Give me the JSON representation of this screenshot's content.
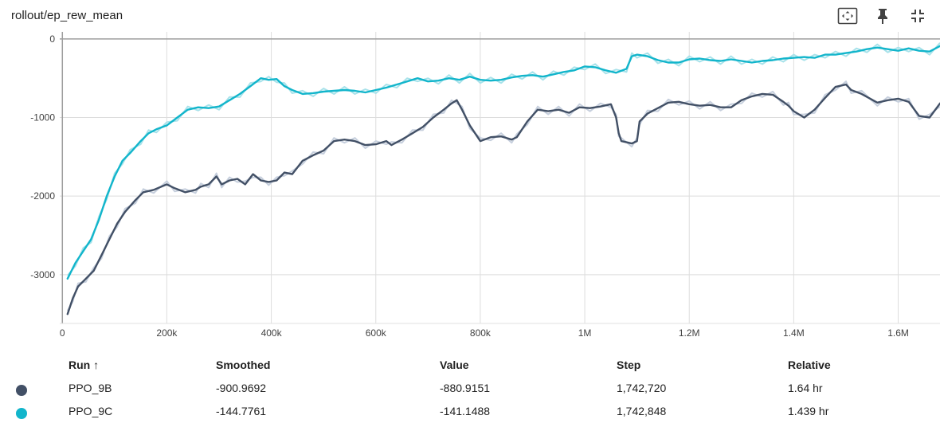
{
  "card": {
    "title": "rollout/ep_rew_mean"
  },
  "toolbar": {
    "icons": [
      "fit-domain-icon",
      "pin-icon",
      "collapse-icon"
    ]
  },
  "chart_data": {
    "type": "line",
    "title": "rollout/ep_rew_mean",
    "xlabel": "",
    "ylabel": "",
    "xlim": [
      -5000,
      1680000
    ],
    "ylim": [
      -3620,
      90
    ],
    "x_ticks": [
      {
        "v": 0,
        "label": "0"
      },
      {
        "v": 200000,
        "label": "200k"
      },
      {
        "v": 400000,
        "label": "400k"
      },
      {
        "v": 600000,
        "label": "600k"
      },
      {
        "v": 800000,
        "label": "800k"
      },
      {
        "v": 1000000,
        "label": "1M"
      },
      {
        "v": 1200000,
        "label": "1.2M"
      },
      {
        "v": 1400000,
        "label": "1.4M"
      },
      {
        "v": 1600000,
        "label": "1.6M"
      }
    ],
    "y_ticks": [
      {
        "v": 0,
        "label": "0"
      },
      {
        "v": -1000,
        "label": "-1000"
      },
      {
        "v": -2000,
        "label": "-2000"
      },
      {
        "v": -3000,
        "label": "-3000"
      }
    ],
    "grid": true,
    "series": [
      {
        "name": "PPO_9B",
        "color": "#425066",
        "raw_color": "#c6cfdd",
        "x": [
          10000,
          20000,
          30000,
          45000,
          60000,
          75000,
          90000,
          105000,
          120000,
          140000,
          155000,
          175000,
          200000,
          215000,
          235000,
          255000,
          265000,
          280000,
          295000,
          305000,
          320000,
          335000,
          350000,
          365000,
          380000,
          395000,
          410000,
          425000,
          440000,
          460000,
          480000,
          500000,
          520000,
          540000,
          560000,
          580000,
          600000,
          620000,
          630000,
          650000,
          670000,
          690000,
          710000,
          730000,
          745000,
          755000,
          765000,
          780000,
          800000,
          820000,
          840000,
          860000,
          870000,
          890000,
          910000,
          930000,
          950000,
          970000,
          990000,
          1010000,
          1030000,
          1050000,
          1060000,
          1065000,
          1070000,
          1090000,
          1100000,
          1105000,
          1120000,
          1140000,
          1160000,
          1180000,
          1200000,
          1220000,
          1240000,
          1260000,
          1280000,
          1300000,
          1320000,
          1340000,
          1360000,
          1380000,
          1390000,
          1400000,
          1420000,
          1440000,
          1460000,
          1480000,
          1500000,
          1510000,
          1530000,
          1560000,
          1580000,
          1600000,
          1620000,
          1640000,
          1660000,
          1680000
        ],
        "values": [
          -3500,
          -3300,
          -3150,
          -3050,
          -2950,
          -2750,
          -2550,
          -2350,
          -2200,
          -2050,
          -1950,
          -1920,
          -1850,
          -1900,
          -1950,
          -1920,
          -1880,
          -1850,
          -1750,
          -1850,
          -1800,
          -1780,
          -1850,
          -1720,
          -1800,
          -1820,
          -1800,
          -1700,
          -1720,
          -1550,
          -1480,
          -1420,
          -1300,
          -1280,
          -1300,
          -1350,
          -1340,
          -1300,
          -1350,
          -1280,
          -1200,
          -1120,
          -1000,
          -900,
          -820,
          -780,
          -900,
          -1100,
          -1300,
          -1250,
          -1240,
          -1280,
          -1250,
          -1050,
          -900,
          -920,
          -900,
          -940,
          -870,
          -880,
          -860,
          -830,
          -1000,
          -1200,
          -1300,
          -1330,
          -1300,
          -1050,
          -950,
          -880,
          -810,
          -800,
          -830,
          -850,
          -840,
          -870,
          -870,
          -780,
          -730,
          -700,
          -710,
          -800,
          -850,
          -920,
          -1000,
          -900,
          -750,
          -610,
          -580,
          -650,
          -700,
          -810,
          -780,
          -760,
          -800,
          -980,
          -1000,
          -820
        ]
      },
      {
        "name": "PPO_9C",
        "color": "#12b5cb",
        "raw_color": "#a8e2ea",
        "x": [
          10000,
          25000,
          40000,
          55000,
          70000,
          85000,
          100000,
          115000,
          130000,
          150000,
          165000,
          180000,
          200000,
          220000,
          240000,
          260000,
          280000,
          300000,
          320000,
          340000,
          360000,
          380000,
          395000,
          410000,
          425000,
          440000,
          460000,
          480000,
          500000,
          520000,
          540000,
          560000,
          580000,
          600000,
          620000,
          640000,
          660000,
          680000,
          700000,
          720000,
          740000,
          760000,
          780000,
          800000,
          820000,
          840000,
          860000,
          880000,
          900000,
          920000,
          940000,
          960000,
          980000,
          1000000,
          1020000,
          1040000,
          1060000,
          1080000,
          1090000,
          1100000,
          1120000,
          1140000,
          1160000,
          1180000,
          1200000,
          1220000,
          1240000,
          1260000,
          1280000,
          1300000,
          1320000,
          1340000,
          1360000,
          1380000,
          1400000,
          1420000,
          1440000,
          1460000,
          1480000,
          1500000,
          1520000,
          1540000,
          1560000,
          1580000,
          1600000,
          1620000,
          1640000,
          1660000,
          1680000
        ],
        "values": [
          -3050,
          -2850,
          -2700,
          -2550,
          -2300,
          -2000,
          -1750,
          -1550,
          -1450,
          -1300,
          -1200,
          -1150,
          -1100,
          -1000,
          -900,
          -870,
          -880,
          -860,
          -780,
          -700,
          -600,
          -500,
          -520,
          -510,
          -600,
          -650,
          -700,
          -690,
          -670,
          -660,
          -650,
          -660,
          -680,
          -650,
          -620,
          -580,
          -540,
          -500,
          -540,
          -530,
          -500,
          -520,
          -480,
          -520,
          -530,
          -520,
          -490,
          -470,
          -460,
          -480,
          -450,
          -420,
          -400,
          -350,
          -360,
          -400,
          -430,
          -380,
          -220,
          -200,
          -220,
          -270,
          -300,
          -300,
          -260,
          -250,
          -270,
          -280,
          -260,
          -280,
          -300,
          -280,
          -270,
          -250,
          -240,
          -230,
          -240,
          -200,
          -200,
          -180,
          -160,
          -130,
          -110,
          -130,
          -150,
          -120,
          -150,
          -160,
          -90
        ]
      }
    ]
  },
  "table": {
    "headers": {
      "run": "Run ↑",
      "smoothed": "Smoothed",
      "value": "Value",
      "step": "Step",
      "relative": "Relative"
    },
    "rows": [
      {
        "color": "#425066",
        "run": "PPO_9B",
        "smoothed": "-900.9692",
        "value": "-880.9151",
        "step": "1,742,720",
        "relative": "1.64 hr"
      },
      {
        "color": "#12b5cb",
        "run": "PPO_9C",
        "smoothed": "-144.7761",
        "value": "-141.1488",
        "step": "1,742,848",
        "relative": "1.439 hr"
      }
    ]
  }
}
